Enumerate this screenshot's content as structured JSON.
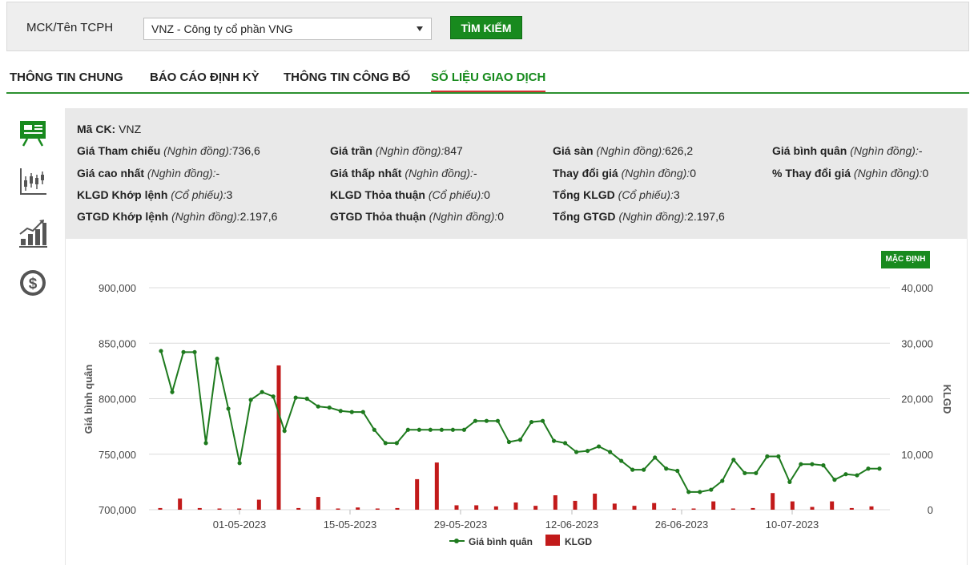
{
  "search": {
    "label": "MCK/Tên TCPH",
    "selected": "VNZ - Công ty cổ phần VNG",
    "button": "TÌM KIẾM"
  },
  "tabs": [
    {
      "label": "THÔNG TIN CHUNG",
      "active": false
    },
    {
      "label": "BÁO CÁO ĐỊNH KỲ",
      "active": false
    },
    {
      "label": "THÔNG TIN CÔNG BỐ",
      "active": false
    },
    {
      "label": "SỐ LIỆU GIAO DỊCH",
      "active": true
    }
  ],
  "sidebar": {
    "icons": [
      "presentation-board-icon",
      "candlestick-icon",
      "bar-growth-icon",
      "dollar-coin-icon"
    ]
  },
  "info": {
    "code_label": "Mã CK:",
    "code_value": "VNZ",
    "unit_dong": "(Nghìn đồng):",
    "unit_cp": "(Cổ phiếu):",
    "ref_label": "Giá Tham chiếu",
    "ref_value": "736,6",
    "ceil_label": "Giá trần",
    "ceil_value": "847",
    "floor_label": "Giá sàn",
    "floor_value": "626,2",
    "avg_label": "Giá bình quân",
    "avg_value": "-",
    "high_label": "Giá cao nhất",
    "high_value": "-",
    "low_label": "Giá thấp nhất",
    "low_value": "-",
    "chg_label": "Thay đổi giá",
    "chg_value": "0",
    "pct_label": "% Thay đổi giá",
    "pct_value": "0",
    "klgd_kl_label": "KLGD Khớp lệnh",
    "klgd_kl_value": "3",
    "klgd_tt_label": "KLGD Thỏa thuận",
    "klgd_tt_value": "0",
    "tong_klgd_label": "Tổng KLGD",
    "tong_klgd_value": "3",
    "gtgd_kl_label": "GTGD Khớp lệnh",
    "gtgd_kl_value": "2.197,6",
    "gtgd_tt_label": "GTGD Thỏa thuận",
    "gtgd_tt_value": "0",
    "tong_gtgd_label": "Tổng GTGD",
    "tong_gtgd_value": "2.197,6"
  },
  "default_button": "MẶC ĐỊNH",
  "colors": {
    "green": "#188a1e",
    "line": "#1e7a1e",
    "bar": "#c21a1a",
    "tab_underline": "#d23030"
  },
  "chart_data": {
    "type": "line",
    "ylabel": "Giá bình quân",
    "y2label": "KLGD",
    "ylim": [
      700000,
      900000
    ],
    "y2lim": [
      0,
      40000
    ],
    "yticks": [
      "700,000",
      "750,000",
      "800,000",
      "850,000",
      "900,000"
    ],
    "y2ticks": [
      "0",
      "10,000",
      "20,000",
      "30,000",
      "40,000"
    ],
    "xticks": [
      "01-05-2023",
      "15-05-2023",
      "29-05-2023",
      "12-06-2023",
      "26-06-2023",
      "10-07-2023"
    ],
    "legend": [
      "Giá bình quân",
      "KLGD"
    ],
    "grid": true,
    "series": [
      {
        "name": "Giá bình quân",
        "type": "line",
        "values": [
          843000,
          806000,
          842000,
          842000,
          760000,
          836000,
          791000,
          742000,
          799000,
          806000,
          802000,
          771000,
          801000,
          800000,
          793000,
          792000,
          789000,
          788000,
          788000,
          772000,
          760000,
          760000,
          772000,
          772000,
          772000,
          772000,
          772000,
          772000,
          780000,
          780000,
          780000,
          761000,
          763000,
          779000,
          780000,
          762000,
          760000,
          752000,
          753000,
          757000,
          752000,
          744000,
          736000,
          736000,
          747000,
          737000,
          735000,
          716000,
          716000,
          718000,
          726000,
          745000,
          733000,
          733000,
          748000,
          748000,
          725000,
          741000,
          741000,
          740000,
          727000,
          732000,
          731000,
          737000,
          737000
        ]
      },
      {
        "name": "KLGD",
        "type": "bar",
        "values": [
          300,
          2000,
          300,
          100,
          200,
          1800,
          26000,
          300,
          2300,
          200,
          400,
          100,
          300,
          5500,
          8500,
          800,
          800,
          600,
          1300,
          700,
          2600,
          1600,
          2900,
          1100,
          700,
          1200,
          200,
          200,
          1500,
          200,
          300,
          3000,
          1500,
          500,
          1500,
          300,
          600
        ]
      }
    ]
  }
}
